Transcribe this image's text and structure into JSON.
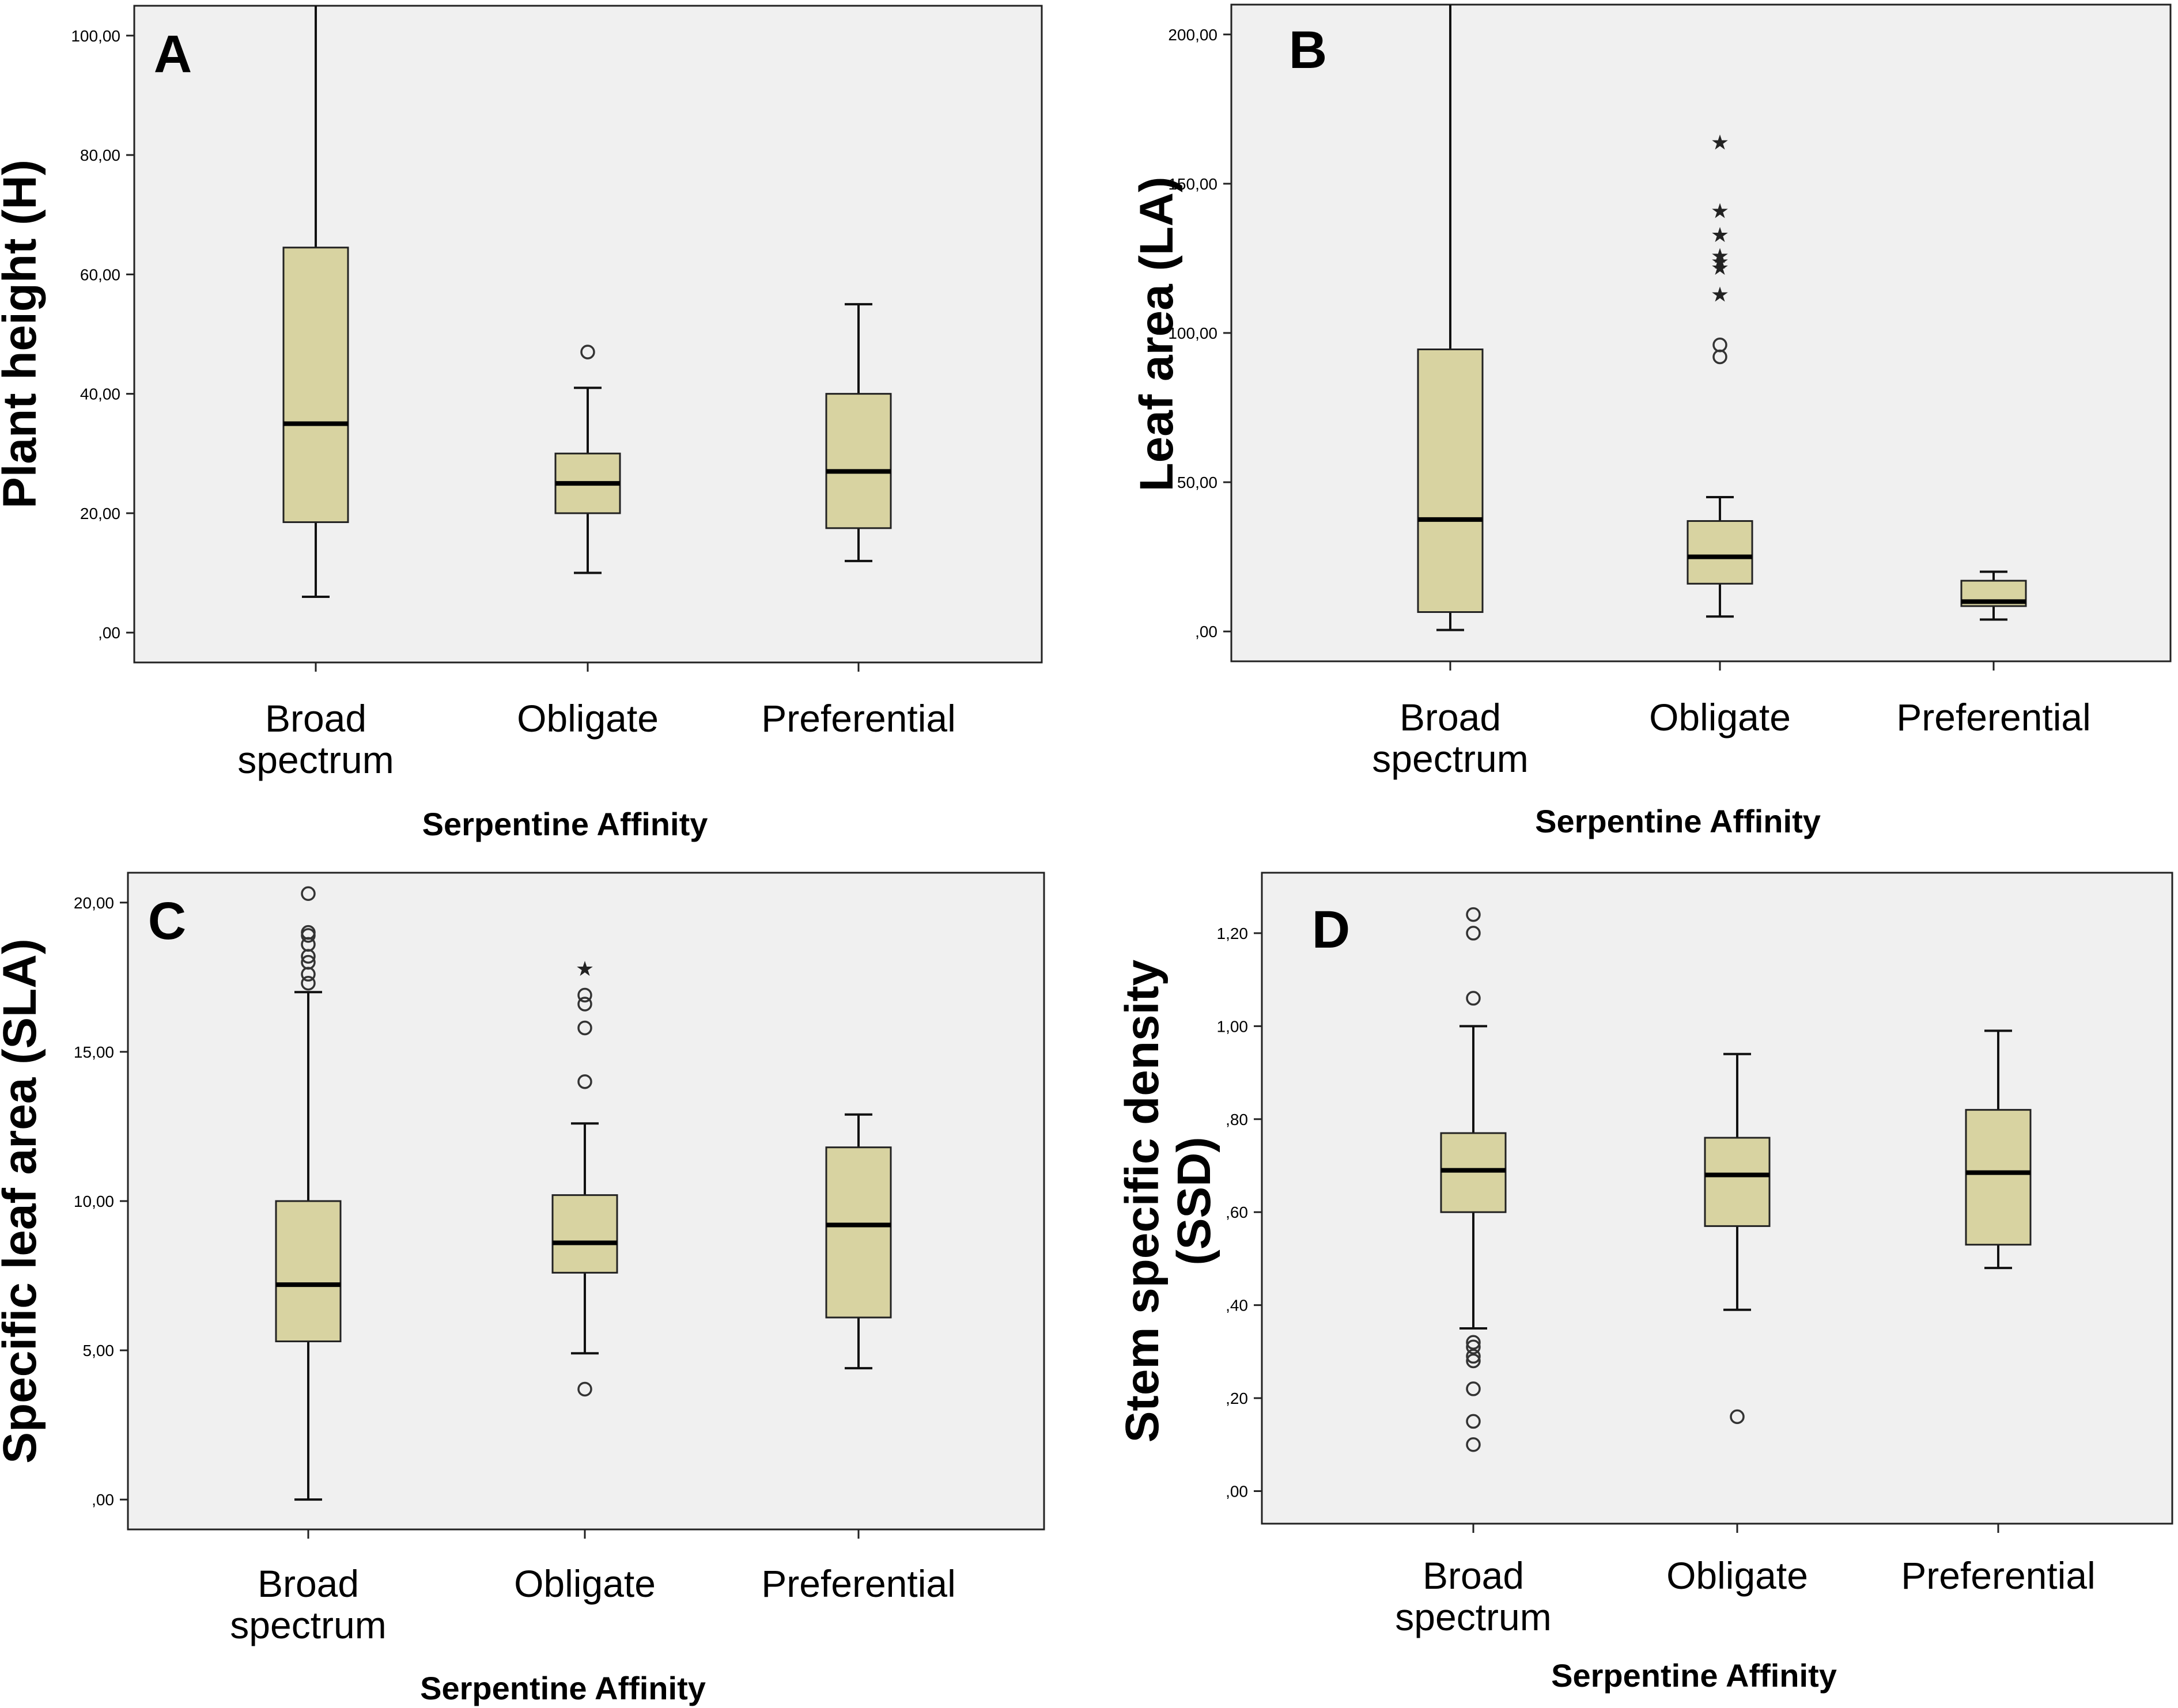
{
  "colors": {
    "panel_bg": "#f0f0f0",
    "box_fill": "#d8d3a1",
    "stroke": "#222222"
  },
  "chart_data": [
    {
      "type": "box",
      "panel": "A",
      "xlabel": "Serpentine Affinity",
      "ylabel": "Plant height (H)",
      "ylim": [
        -5,
        105
      ],
      "yticks": [
        0,
        20,
        40,
        60,
        80,
        100
      ],
      "ytick_labels": [
        ",00",
        "20,00",
        "40,00",
        "60,00",
        "80,00",
        "100,00"
      ],
      "categories": [
        {
          "label_line1": "Broad",
          "label_line2": "spectrum",
          "min": 6,
          "q1": 18.5,
          "median": 35,
          "q3": 64.5,
          "max": 105,
          "outliers": [],
          "extremes": []
        },
        {
          "label_line1": "Obligate",
          "label_line2": "",
          "min": 10,
          "q1": 20,
          "median": 25,
          "q3": 30,
          "max": 41,
          "outliers": [
            47
          ],
          "extremes": []
        },
        {
          "label_line1": "Preferential",
          "label_line2": "",
          "min": 12,
          "q1": 17.5,
          "median": 27,
          "q3": 40,
          "max": 55,
          "outliers": [],
          "extremes": []
        }
      ]
    },
    {
      "type": "box",
      "panel": "B",
      "xlabel": "Serpentine Affinity",
      "ylabel": "Leaf area (LA)",
      "ylim": [
        -10,
        210
      ],
      "yticks": [
        0,
        50,
        100,
        150,
        200
      ],
      "ytick_labels": [
        ",00",
        "50,00",
        "100,00",
        "150,00",
        "200,00"
      ],
      "categories": [
        {
          "label_line1": "Broad",
          "label_line2": "spectrum",
          "min": 0.5,
          "q1": 6.5,
          "median": 37.5,
          "q3": 94.5,
          "max": 210,
          "outliers": [],
          "extremes": []
        },
        {
          "label_line1": "Obligate",
          "label_line2": "",
          "min": 5,
          "q1": 16,
          "median": 25,
          "q3": 37,
          "max": 45,
          "outliers": [
            92,
            96
          ],
          "extremes": [
            113,
            122,
            124,
            126,
            133,
            141,
            164
          ]
        },
        {
          "label_line1": "Preferential",
          "label_line2": "",
          "min": 4,
          "q1": 8.5,
          "median": 10,
          "q3": 17,
          "max": 20,
          "outliers": [],
          "extremes": []
        }
      ]
    },
    {
      "type": "box",
      "panel": "C",
      "xlabel": "Serpentine Affinity",
      "ylabel": "Specific leaf area (SLA)",
      "ylim": [
        -1,
        21
      ],
      "yticks": [
        0,
        5,
        10,
        15,
        20
      ],
      "ytick_labels": [
        ",00",
        "5,00",
        "10,00",
        "15,00",
        "20,00"
      ],
      "categories": [
        {
          "label_line1": "Broad",
          "label_line2": "spectrum",
          "min": 0,
          "q1": 5.3,
          "median": 7.2,
          "q3": 10,
          "max": 17,
          "outliers": [
            17.3,
            17.6,
            18,
            18.2,
            18.6,
            18.9,
            19,
            20.3
          ],
          "extremes": []
        },
        {
          "label_line1": "Obligate",
          "label_line2": "",
          "min": 4.9,
          "q1": 7.6,
          "median": 8.6,
          "q3": 10.2,
          "max": 12.6,
          "outliers": [
            3.7,
            14,
            15.8,
            16.6,
            16.9
          ],
          "extremes": [
            17.8
          ]
        },
        {
          "label_line1": "Preferential",
          "label_line2": "",
          "min": 4.4,
          "q1": 6.1,
          "median": 9.2,
          "q3": 11.8,
          "max": 12.9,
          "outliers": [],
          "extremes": []
        }
      ]
    },
    {
      "type": "box",
      "panel": "D",
      "xlabel": "Serpentine Affinity",
      "ylabel_line1": "Stem specific density",
      "ylabel_line2": "(SSD)",
      "ylim": [
        -0.07,
        1.33
      ],
      "yticks": [
        0,
        0.2,
        0.4,
        0.6,
        0.8,
        1.0,
        1.2
      ],
      "ytick_labels": [
        ",00",
        ",20",
        ",40",
        ",60",
        ",80",
        "1,00",
        "1,20"
      ],
      "categories": [
        {
          "label_line1": "Broad",
          "label_line2": "spectrum",
          "min": 0.35,
          "q1": 0.6,
          "median": 0.69,
          "q3": 0.77,
          "max": 1.0,
          "outliers": [
            0.1,
            0.15,
            0.22,
            0.28,
            0.29,
            0.31,
            0.32,
            1.06,
            1.2,
            1.24
          ],
          "extremes": []
        },
        {
          "label_line1": "Obligate",
          "label_line2": "",
          "min": 0.39,
          "q1": 0.57,
          "median": 0.68,
          "q3": 0.76,
          "max": 0.94,
          "outliers": [
            0.16
          ],
          "extremes": []
        },
        {
          "label_line1": "Preferential",
          "label_line2": "",
          "min": 0.48,
          "q1": 0.53,
          "median": 0.685,
          "q3": 0.82,
          "max": 0.99,
          "outliers": [],
          "extremes": []
        }
      ]
    }
  ]
}
